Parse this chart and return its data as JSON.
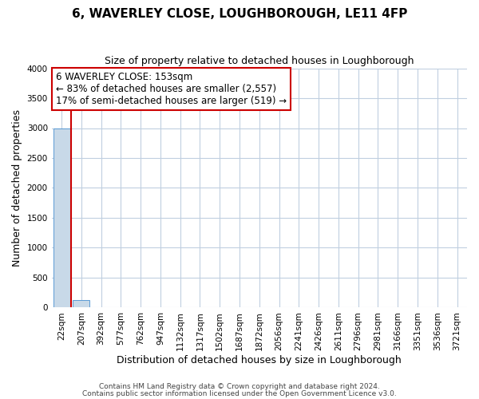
{
  "title1": "6, WAVERLEY CLOSE, LOUGHBOROUGH, LE11 4FP",
  "title2": "Size of property relative to detached houses in Loughborough",
  "xlabel": "Distribution of detached houses by size in Loughborough",
  "ylabel": "Number of detached properties",
  "categories": [
    "22sqm",
    "207sqm",
    "392sqm",
    "577sqm",
    "762sqm",
    "947sqm",
    "1132sqm",
    "1317sqm",
    "1502sqm",
    "1687sqm",
    "1872sqm",
    "2056sqm",
    "2241sqm",
    "2426sqm",
    "2611sqm",
    "2796sqm",
    "2981sqm",
    "3166sqm",
    "3351sqm",
    "3536sqm",
    "3721sqm"
  ],
  "bar_heights": [
    2998,
    130,
    0,
    0,
    0,
    0,
    0,
    0,
    0,
    0,
    0,
    0,
    0,
    0,
    0,
    0,
    0,
    0,
    0,
    0,
    0
  ],
  "bar_color": "#c8d9e8",
  "bar_edge_color": "#5b9bd5",
  "property_line_color": "#cc0000",
  "ylim": [
    0,
    4000
  ],
  "yticks": [
    0,
    500,
    1000,
    1500,
    2000,
    2500,
    3000,
    3500,
    4000
  ],
  "annotation_title": "6 WAVERLEY CLOSE: 153sqm",
  "annotation_line1": "← 83% of detached houses are smaller (2,557)",
  "annotation_line2": "17% of semi-detached houses are larger (519) →",
  "annotation_box_color": "#ffffff",
  "annotation_box_edge": "#cc0000",
  "footer1": "Contains HM Land Registry data © Crown copyright and database right 2024.",
  "footer2": "Contains public sector information licensed under the Open Government Licence v3.0.",
  "background_color": "#ffffff",
  "grid_color": "#c0cfe0",
  "title1_fontsize": 11,
  "title2_fontsize": 9,
  "xlabel_fontsize": 9,
  "ylabel_fontsize": 9,
  "tick_fontsize": 7.5,
  "annotation_fontsize": 8.5,
  "footer_fontsize": 6.5
}
